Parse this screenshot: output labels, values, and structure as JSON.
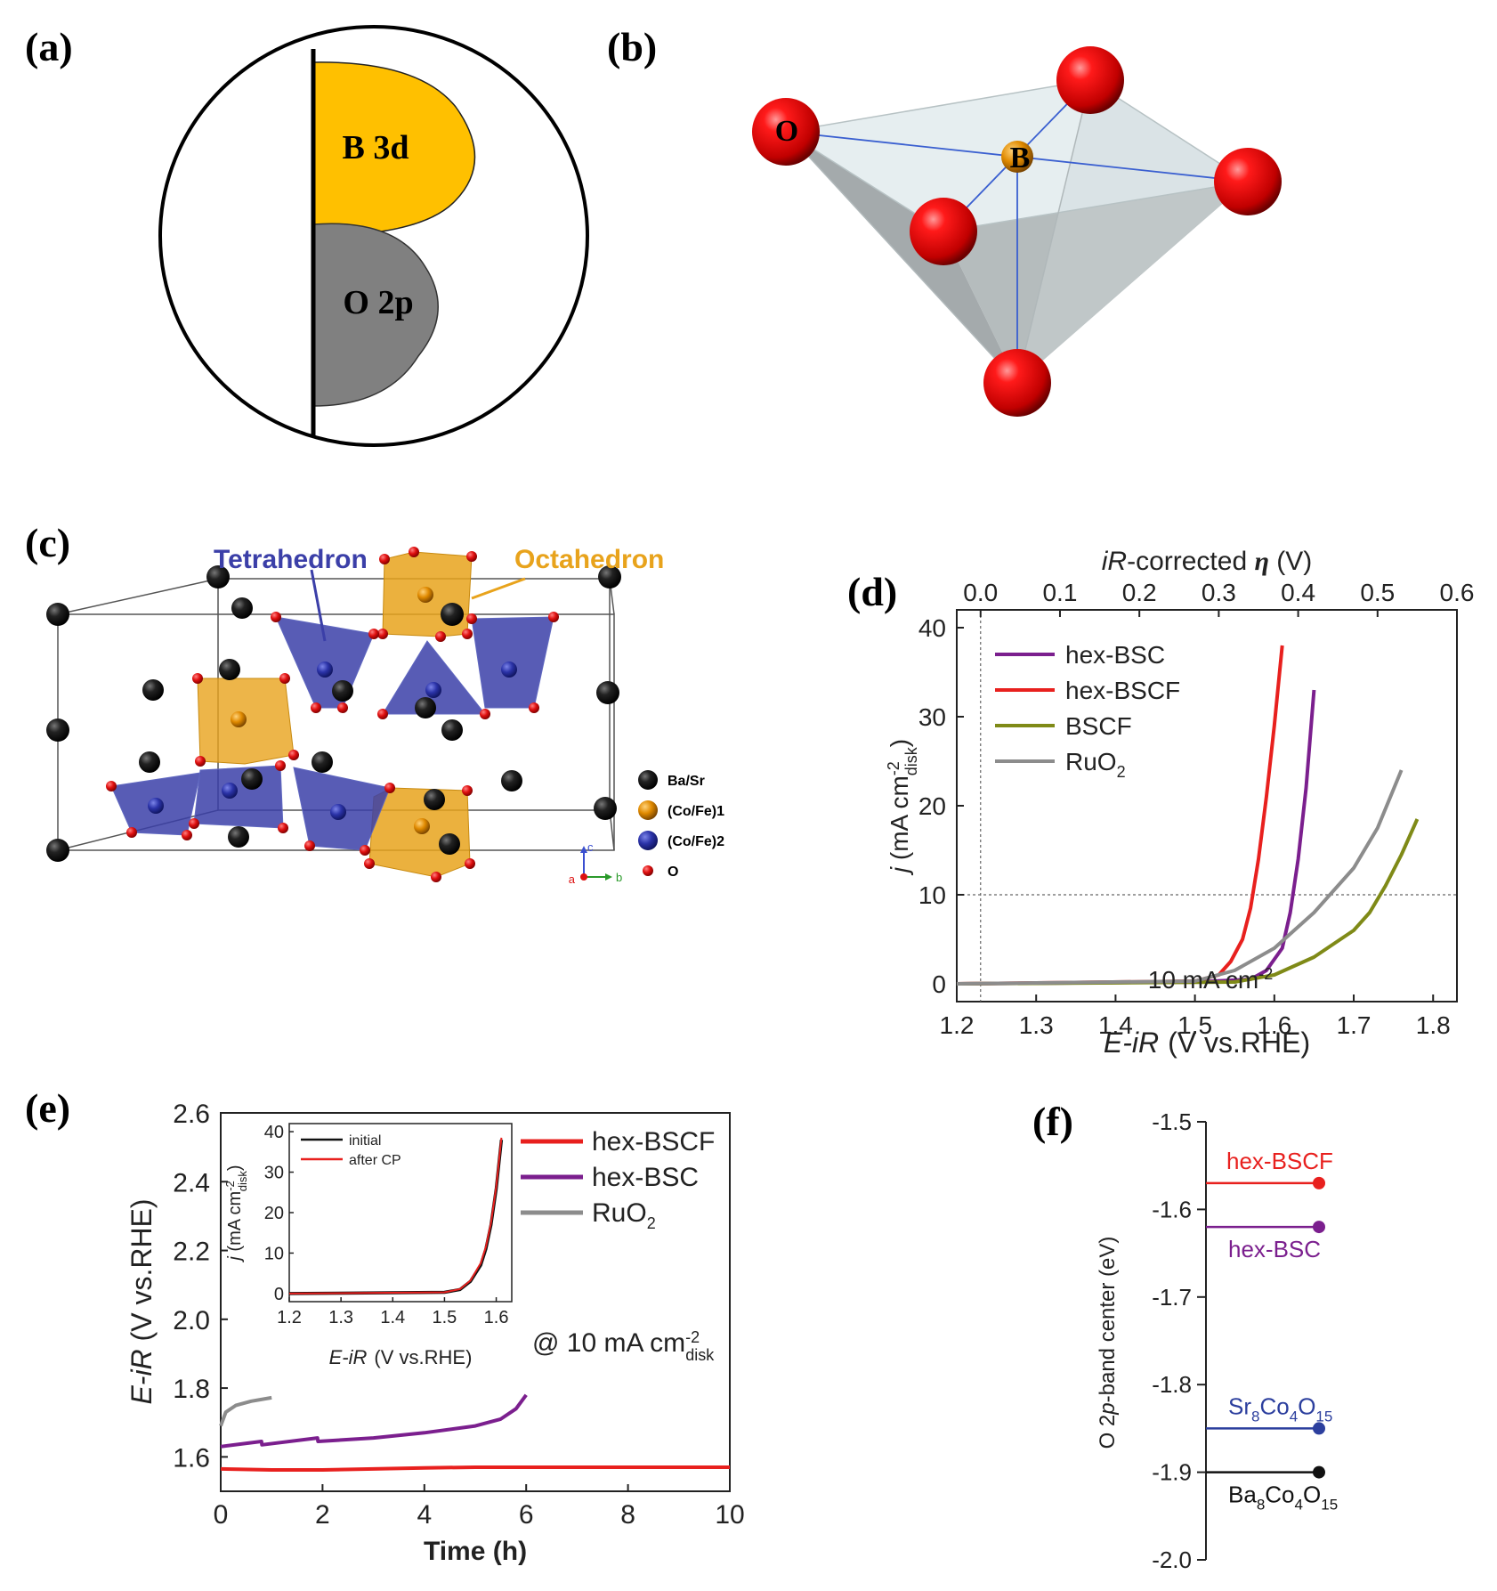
{
  "panels": {
    "a": {
      "label": "(a)",
      "upper_lobe": "B 3d",
      "lower_lobe": "O 2p",
      "colors": {
        "upper": "#FFC000",
        "lower": "#808080"
      }
    },
    "b": {
      "label": "(b)",
      "oxygen_label": "O",
      "center_label": "B",
      "colors": {
        "oxygen": "#ee0000",
        "center": "#e08a00"
      }
    },
    "c": {
      "label": "(c)",
      "tetra_label": "Tetrahedron",
      "octa_label": "Octahedron",
      "legend": [
        "Ba/Sr",
        "(Co/Fe)1",
        "(Co/Fe)2",
        "O"
      ],
      "axes": [
        "a",
        "b",
        "c"
      ],
      "colors": {
        "tetra": "#3b3fa8",
        "octa": "#e8a31c",
        "basr": "#151515",
        "o": "#dd1111"
      }
    },
    "d": {
      "label": "(d)",
      "ref_label": "10 mA cm",
      "ref_sup": "-2",
      "xlabel_italic": "E-iR",
      "xlabel_rest": "(V vs.RHE)",
      "top_label_italic": "iR",
      "top_label_mid": "-corrected ",
      "top_label_eta": "η",
      "top_label_end": " (V)",
      "ylabel_j": "j",
      "ylabel_unit": " (mA cm",
      "ylabel_sup": "-2",
      "ylabel_sub": "disk",
      "ylabel_close": ")"
    },
    "e": {
      "label": "(e)",
      "xlabel": "Time (h)",
      "ylabel_italic": "E-iR",
      "ylabel_rest": " (V vs.RHE)",
      "annotation": "@ 10 mA cm",
      "annotation_sup": "-2",
      "annotation_sub": "disk",
      "inset": {
        "legend": [
          "initial",
          "after CP"
        ],
        "xlabel_italic": "E-iR",
        "xlabel_rest": "(V vs.RHE)",
        "ylabel_j": "j",
        "ylabel_unit": " (mA cm",
        "ylabel_sup": "-2",
        "ylabel_sub": "disk",
        "ylabel_close": ")"
      }
    },
    "f": {
      "label": "(f)",
      "ylabel_pre": "O 2",
      "ylabel_p": "p",
      "ylabel_post": "-band center (eV)"
    }
  },
  "chart_data": [
    {
      "id": "d",
      "type": "line",
      "title": "",
      "xlabel": "E-iR (V vs.RHE)",
      "ylabel": "j (mA cm-2 disk)",
      "x2label": "iR-corrected η (V)",
      "xlim": [
        1.2,
        1.83
      ],
      "ylim": [
        -2,
        42
      ],
      "xticks": [
        1.2,
        1.3,
        1.4,
        1.5,
        1.6,
        1.7,
        1.8
      ],
      "yticks": [
        0,
        10,
        20,
        30,
        40
      ],
      "x2ticks": [
        0.0,
        0.1,
        0.2,
        0.3,
        0.4,
        0.5,
        0.6
      ],
      "ref_hline": 10,
      "ref_vline": 1.23,
      "legend_position": "top-left",
      "series": [
        {
          "name": "hex-BSC",
          "color": "#7b1f8e",
          "x": [
            1.2,
            1.5,
            1.57,
            1.59,
            1.61,
            1.62,
            1.63,
            1.64,
            1.65
          ],
          "y": [
            0,
            0.2,
            0.5,
            1.5,
            4,
            8,
            14,
            22,
            33
          ]
        },
        {
          "name": "hex-BSCF",
          "color": "#e8201e",
          "x": [
            1.2,
            1.5,
            1.53,
            1.545,
            1.56,
            1.57,
            1.58,
            1.59,
            1.6,
            1.61
          ],
          "y": [
            0,
            0.3,
            1,
            2.5,
            5,
            8.5,
            14,
            21,
            29,
            38
          ]
        },
        {
          "name": "BSCF",
          "color": "#7f8a17",
          "x": [
            1.2,
            1.55,
            1.6,
            1.65,
            1.7,
            1.72,
            1.74,
            1.76,
            1.78
          ],
          "y": [
            0,
            0.2,
            1,
            3,
            6,
            8,
            11,
            14.5,
            18.5
          ]
        },
        {
          "name": "RuO2",
          "color": "#8c8c8c",
          "x": [
            1.2,
            1.5,
            1.55,
            1.6,
            1.65,
            1.7,
            1.73,
            1.76
          ],
          "y": [
            0,
            0.3,
            1.5,
            4,
            8,
            13,
            17.5,
            24
          ]
        }
      ]
    },
    {
      "id": "e",
      "type": "line",
      "title": "",
      "xlabel": "Time (h)",
      "ylabel": "E-iR (V vs.RHE)",
      "xlim": [
        0,
        10
      ],
      "ylim": [
        1.5,
        2.6
      ],
      "xticks": [
        0,
        2,
        4,
        6,
        8,
        10
      ],
      "yticks": [
        1.6,
        1.8,
        2.0,
        2.2,
        2.4,
        2.6
      ],
      "legend_position": "top-right",
      "series": [
        {
          "name": "hex-BSCF",
          "color": "#e8201e",
          "x": [
            0,
            1,
            2,
            3,
            4,
            5,
            6,
            7,
            8,
            9,
            10
          ],
          "y": [
            1.565,
            1.562,
            1.562,
            1.565,
            1.568,
            1.57,
            1.57,
            1.57,
            1.57,
            1.57,
            1.57
          ]
        },
        {
          "name": "hex-BSC",
          "color": "#7b1f8e",
          "x": [
            0,
            0.8,
            0.81,
            1.9,
            1.91,
            3,
            4,
            5,
            5.5,
            5.8,
            6
          ],
          "y": [
            1.63,
            1.645,
            1.635,
            1.655,
            1.645,
            1.655,
            1.67,
            1.69,
            1.71,
            1.74,
            1.78
          ]
        },
        {
          "name": "RuO2",
          "color": "#8c8c8c",
          "x": [
            0,
            0.1,
            0.3,
            0.6,
            1
          ],
          "y": [
            1.69,
            1.73,
            1.75,
            1.762,
            1.772
          ]
        }
      ]
    },
    {
      "id": "e-inset",
      "type": "line",
      "title": "",
      "xlabel": "E-iR (V vs.RHE)",
      "ylabel": "j (mA cm-2 disk)",
      "xlim": [
        1.2,
        1.63
      ],
      "ylim": [
        -2,
        42
      ],
      "xticks": [
        1.2,
        1.3,
        1.4,
        1.5,
        1.6
      ],
      "yticks": [
        0,
        10,
        20,
        30,
        40
      ],
      "legend_position": "top-left",
      "series": [
        {
          "name": "initial",
          "color": "#111111",
          "x": [
            1.2,
            1.5,
            1.53,
            1.55,
            1.57,
            1.58,
            1.59,
            1.6,
            1.61
          ],
          "y": [
            0,
            0.3,
            1,
            3,
            7,
            11,
            17,
            26,
            38
          ]
        },
        {
          "name": "after CP",
          "color": "#e8201e",
          "x": [
            1.2,
            1.5,
            1.53,
            1.55,
            1.57,
            1.58,
            1.59,
            1.6,
            1.61
          ],
          "y": [
            0,
            0.3,
            1.1,
            3.2,
            7.5,
            11.5,
            17.5,
            26.5,
            38.5
          ]
        }
      ]
    },
    {
      "id": "f",
      "type": "scatter",
      "title": "",
      "xlabel": "",
      "ylabel": "O 2p-band center (eV)",
      "ylim": [
        -2.0,
        -1.5
      ],
      "yticks": [
        -1.5,
        -1.6,
        -1.7,
        -1.8,
        -1.9,
        -2.0
      ],
      "ytick_labels": [
        "-1.5",
        "-1.6",
        "-1.7",
        "-1.8",
        "-1.9",
        "-2.0"
      ],
      "points": [
        {
          "name": "hex-BSCF",
          "value": -1.57,
          "color": "#e8201e",
          "label_side": "above",
          "base": "hex-BSCF",
          "subs": []
        },
        {
          "name": "hex-BSC",
          "value": -1.62,
          "color": "#7b1f8e",
          "label_side": "below",
          "base": "hex-BSC",
          "subs": []
        },
        {
          "name": "Sr8Co4O15",
          "value": -1.85,
          "color": "#2c3f9e",
          "label_side": "above",
          "base": "Sr",
          "subs": [
            [
              "8",
              "Co"
            ],
            [
              "4",
              "O"
            ],
            [
              "15",
              ""
            ]
          ]
        },
        {
          "name": "Ba8Co4O15",
          "value": -1.9,
          "color": "#111111",
          "label_side": "below",
          "base": "Ba",
          "subs": [
            [
              "8",
              "Co"
            ],
            [
              "4",
              "O"
            ],
            [
              "15",
              ""
            ]
          ]
        }
      ]
    }
  ]
}
